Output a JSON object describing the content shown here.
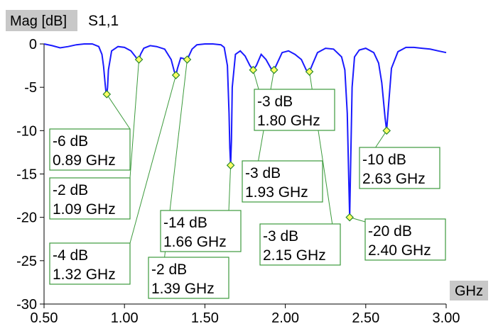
{
  "chart_data": {
    "type": "line",
    "title": "S1,1",
    "title_main": "S",
    "title_sub": "1,1",
    "ylabel": "Mag [dB]",
    "xlabel": "GHz",
    "xlim": [
      0.5,
      3.0
    ],
    "ylim": [
      -30,
      0
    ],
    "x_ticks": [
      "0.50",
      "1.00",
      "1.50",
      "2.00",
      "2.50",
      "3.00"
    ],
    "y_ticks": [
      "0",
      "-5",
      "-10",
      "-15",
      "-20",
      "-25",
      "-30"
    ],
    "grid": false,
    "series": [
      {
        "name": "S1,1",
        "color": "#1a1aff",
        "x": [
          0.5,
          0.55,
          0.6,
          0.65,
          0.7,
          0.75,
          0.8,
          0.84,
          0.86,
          0.87,
          0.88,
          0.885,
          0.89,
          0.895,
          0.9,
          0.92,
          0.96,
          1.0,
          1.04,
          1.07,
          1.08,
          1.09,
          1.1,
          1.12,
          1.16,
          1.2,
          1.25,
          1.29,
          1.31,
          1.32,
          1.33,
          1.35,
          1.37,
          1.38,
          1.39,
          1.4,
          1.42,
          1.45,
          1.5,
          1.55,
          1.6,
          1.62,
          1.64,
          1.65,
          1.655,
          1.66,
          1.665,
          1.67,
          1.69,
          1.72,
          1.75,
          1.78,
          1.8,
          1.82,
          1.85,
          1.88,
          1.91,
          1.93,
          1.95,
          1.98,
          2.02,
          2.06,
          2.1,
          2.13,
          2.15,
          2.17,
          2.2,
          2.25,
          2.3,
          2.35,
          2.37,
          2.385,
          2.395,
          2.4,
          2.405,
          2.415,
          2.43,
          2.46,
          2.5,
          2.55,
          2.58,
          2.6,
          2.62,
          2.63,
          2.64,
          2.66,
          2.7,
          2.75,
          2.8,
          2.85,
          2.9,
          2.95,
          3.0
        ],
        "values": [
          0,
          -0.2,
          -0.45,
          -0.3,
          -0.1,
          0,
          0,
          -0.3,
          -1.2,
          -2.6,
          -4.6,
          -5.6,
          -5.8,
          -5.0,
          -3.0,
          -0.8,
          -0.3,
          -0.4,
          -0.8,
          -1.5,
          -1.8,
          -1.8,
          -1.2,
          -0.5,
          -0.2,
          -0.3,
          -0.6,
          -1.8,
          -3.2,
          -3.6,
          -2.8,
          -1.6,
          -1.7,
          -1.8,
          -1.8,
          -1.4,
          -0.6,
          -0.1,
          0,
          0,
          -0.1,
          -0.4,
          -2.5,
          -8.0,
          -12.0,
          -14.0,
          -11.0,
          -5.0,
          -1.2,
          -0.8,
          -1.4,
          -2.5,
          -3.0,
          -2.5,
          -1.2,
          -1.8,
          -2.8,
          -3.0,
          -2.2,
          -1.0,
          -0.8,
          -1.2,
          -1.8,
          -3.0,
          -3.2,
          -2.3,
          -1.0,
          -0.5,
          -0.6,
          -1.5,
          -3.0,
          -8.0,
          -16.0,
          -20.0,
          -15.0,
          -5.0,
          -1.5,
          -0.7,
          -0.5,
          -1.0,
          -2.2,
          -4.5,
          -8.5,
          -10.0,
          -7.5,
          -2.8,
          -0.9,
          -0.4,
          -0.4,
          -0.5,
          -0.6,
          -0.8,
          -1.0
        ]
      }
    ],
    "markers": [
      {
        "x": 0.89,
        "y": -5.8,
        "label_db": "-6 dB",
        "label_freq": "0.89 GHz"
      },
      {
        "x": 1.09,
        "y": -1.8,
        "label_db": "-2 dB",
        "label_freq": "1.09 GHz"
      },
      {
        "x": 1.32,
        "y": -3.6,
        "label_db": "-4 dB",
        "label_freq": "1.32 GHz"
      },
      {
        "x": 1.39,
        "y": -1.8,
        "label_db": "-2 dB",
        "label_freq": "1.39 GHz"
      },
      {
        "x": 1.66,
        "y": -14.0,
        "label_db": "-14 dB",
        "label_freq": "1.66 GHz"
      },
      {
        "x": 1.8,
        "y": -3.0,
        "label_db": "-3 dB",
        "label_freq": "1.80 GHz"
      },
      {
        "x": 1.93,
        "y": -3.0,
        "label_db": "-3 dB",
        "label_freq": "1.93 GHz"
      },
      {
        "x": 2.15,
        "y": -3.2,
        "label_db": "-3 dB",
        "label_freq": "2.15 GHz"
      },
      {
        "x": 2.4,
        "y": -20.0,
        "label_db": "-20 dB",
        "label_freq": "2.40 GHz"
      },
      {
        "x": 2.63,
        "y": -10.0,
        "label_db": "-10 dB",
        "label_freq": "2.63 GHz"
      }
    ]
  }
}
